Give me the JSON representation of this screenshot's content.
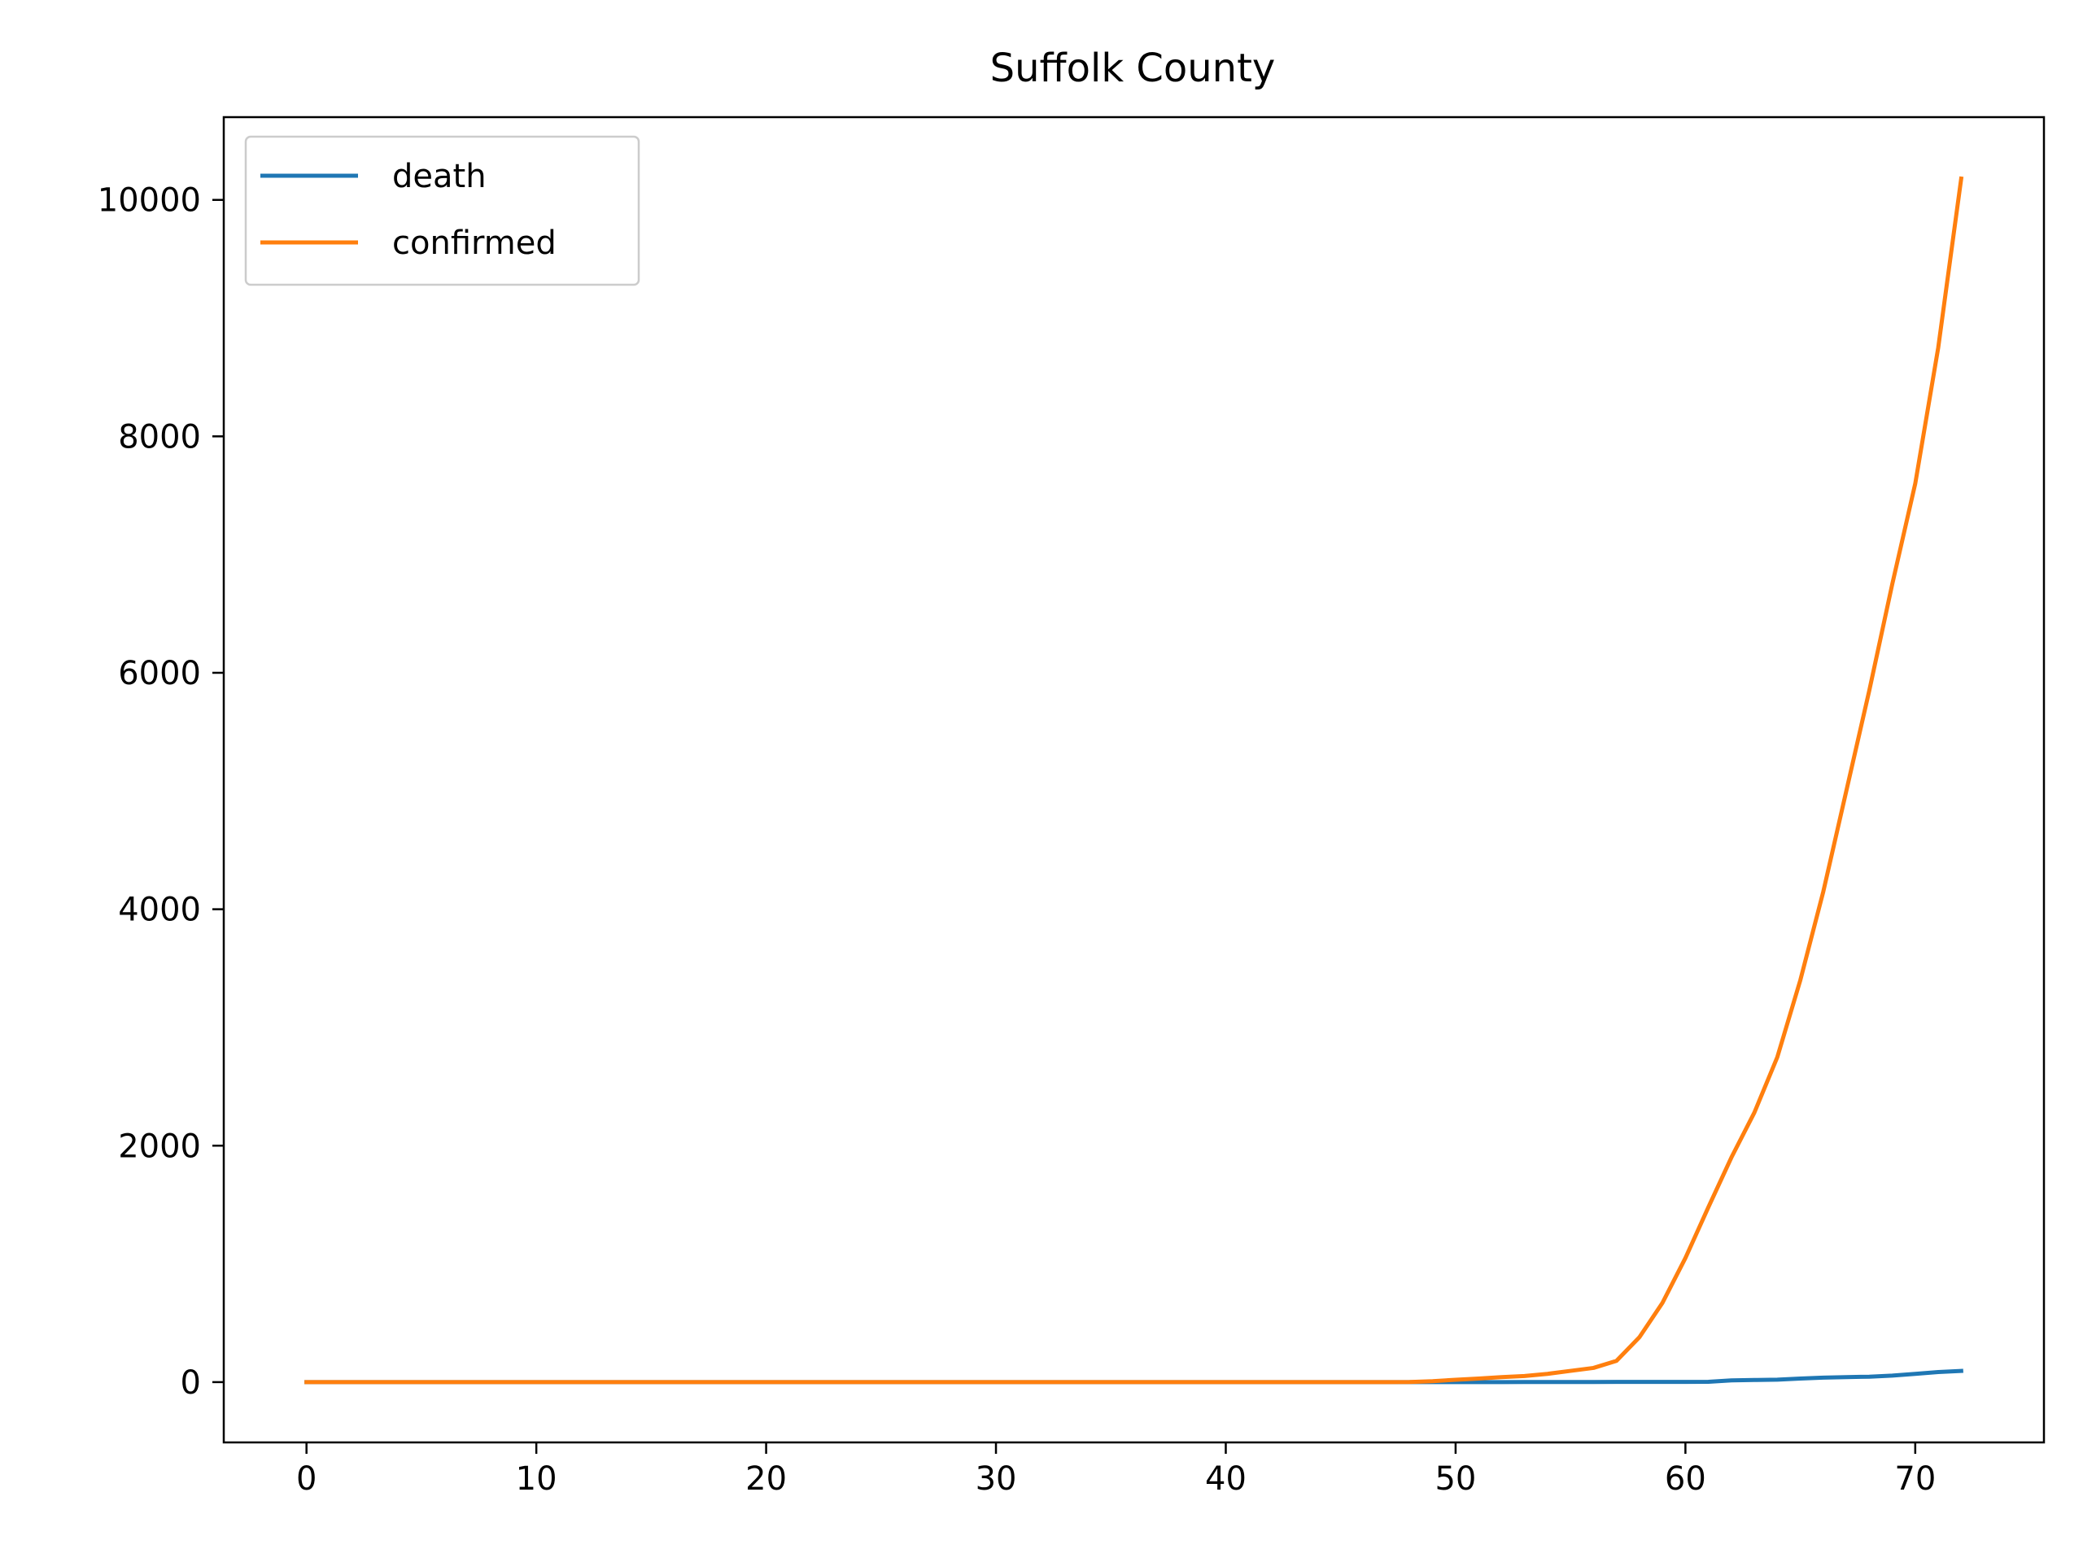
{
  "chart_data": {
    "type": "line",
    "title": "Suffolk County",
    "xlabel": "",
    "ylabel": "",
    "xlim": [
      -3.6,
      75.6
    ],
    "ylim": [
      -510,
      10700
    ],
    "x_ticks": [
      0,
      10,
      20,
      30,
      40,
      50,
      60,
      70
    ],
    "y_ticks": [
      0,
      2000,
      4000,
      6000,
      8000,
      10000
    ],
    "grid": false,
    "legend_position": "top-left",
    "series": [
      {
        "name": "death",
        "color": "#1f77b4",
        "x": [
          0,
          1,
          2,
          3,
          4,
          5,
          6,
          7,
          8,
          9,
          10,
          11,
          12,
          13,
          14,
          15,
          16,
          17,
          18,
          19,
          20,
          21,
          22,
          23,
          24,
          25,
          26,
          27,
          28,
          29,
          30,
          31,
          32,
          33,
          34,
          35,
          36,
          37,
          38,
          39,
          40,
          41,
          42,
          43,
          44,
          45,
          46,
          47,
          48,
          49,
          50,
          51,
          52,
          53,
          54,
          55,
          56,
          57,
          58,
          59,
          60,
          61,
          62,
          63,
          64,
          65,
          66,
          67,
          68,
          69,
          70,
          71,
          72
        ],
        "values": [
          0,
          0,
          0,
          0,
          0,
          0,
          0,
          0,
          0,
          0,
          0,
          0,
          0,
          0,
          0,
          0,
          0,
          0,
          0,
          0,
          0,
          0,
          0,
          0,
          0,
          0,
          0,
          0,
          0,
          0,
          0,
          0,
          0,
          0,
          0,
          0,
          0,
          0,
          0,
          0,
          0,
          0,
          0,
          0,
          0,
          0,
          0,
          0,
          0,
          0,
          0,
          0,
          0,
          1,
          1,
          1,
          1,
          2,
          2,
          2,
          2,
          3,
          15,
          18,
          21,
          30,
          38,
          42,
          46,
          55,
          70,
          85,
          95
        ]
      },
      {
        "name": "confirmed",
        "color": "#ff7f0e",
        "x": [
          0,
          1,
          2,
          3,
          4,
          5,
          6,
          7,
          8,
          9,
          10,
          11,
          12,
          13,
          14,
          15,
          16,
          17,
          18,
          19,
          20,
          21,
          22,
          23,
          24,
          25,
          26,
          27,
          28,
          29,
          30,
          31,
          32,
          33,
          34,
          35,
          36,
          37,
          38,
          39,
          40,
          41,
          42,
          43,
          44,
          45,
          46,
          47,
          48,
          49,
          50,
          51,
          52,
          53,
          54,
          55,
          56,
          57,
          58,
          59,
          60,
          61,
          62,
          63,
          64,
          65,
          66,
          67,
          68,
          69,
          70,
          71,
          72
        ],
        "values": [
          0,
          0,
          0,
          0,
          0,
          0,
          0,
          0,
          0,
          0,
          0,
          0,
          0,
          0,
          0,
          0,
          0,
          0,
          0,
          0,
          0,
          0,
          0,
          0,
          0,
          0,
          0,
          0,
          0,
          0,
          0,
          0,
          0,
          0,
          0,
          0,
          0,
          0,
          0,
          0,
          0,
          0,
          0,
          0,
          0,
          0,
          0,
          0,
          1,
          8,
          20,
          30,
          42,
          52,
          70,
          95,
          120,
          180,
          380,
          670,
          1050,
          1480,
          1900,
          2280,
          2750,
          3400,
          4150,
          5000,
          5850,
          6750,
          7600,
          8750,
          10180
        ]
      }
    ]
  }
}
